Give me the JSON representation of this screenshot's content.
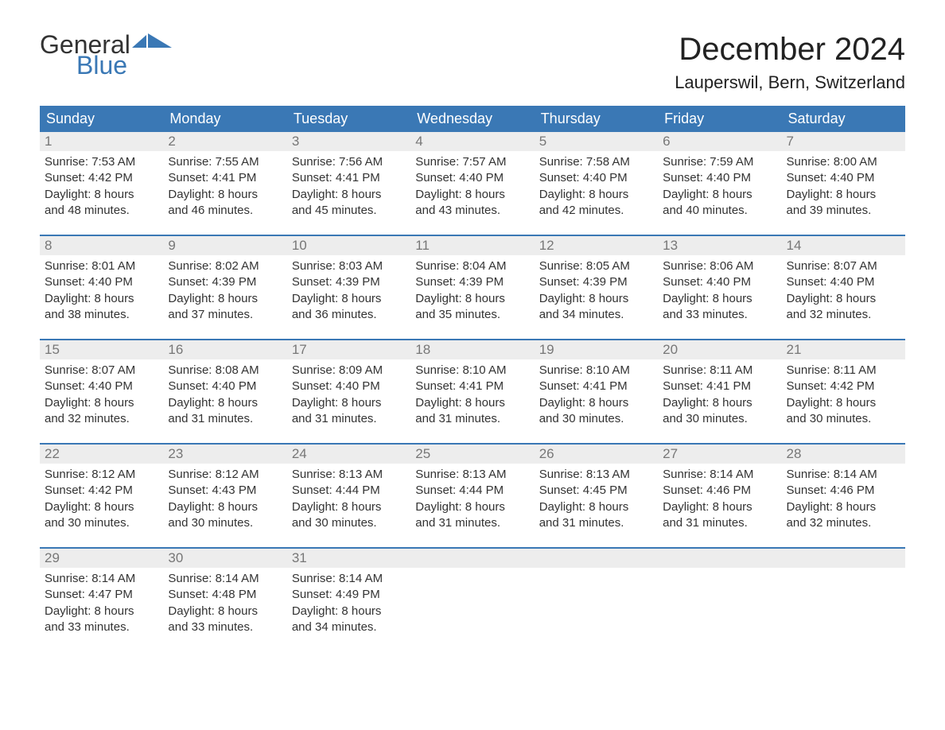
{
  "brand": {
    "general": "General",
    "blue": "Blue"
  },
  "title": "December 2024",
  "location": "Lauperswil, Bern, Switzerland",
  "colors": {
    "header_bg": "#3a78b5",
    "header_text": "#ffffff",
    "daynum_bg": "#ededed",
    "daynum_text": "#777777",
    "body_text": "#333333",
    "row_border": "#3a78b5",
    "logo_accent": "#3a78b5"
  },
  "day_headers": [
    "Sunday",
    "Monday",
    "Tuesday",
    "Wednesday",
    "Thursday",
    "Friday",
    "Saturday"
  ],
  "weeks": [
    [
      {
        "n": "1",
        "sr": "Sunrise: 7:53 AM",
        "ss": "Sunset: 4:42 PM",
        "d1": "Daylight: 8 hours",
        "d2": "and 48 minutes."
      },
      {
        "n": "2",
        "sr": "Sunrise: 7:55 AM",
        "ss": "Sunset: 4:41 PM",
        "d1": "Daylight: 8 hours",
        "d2": "and 46 minutes."
      },
      {
        "n": "3",
        "sr": "Sunrise: 7:56 AM",
        "ss": "Sunset: 4:41 PM",
        "d1": "Daylight: 8 hours",
        "d2": "and 45 minutes."
      },
      {
        "n": "4",
        "sr": "Sunrise: 7:57 AM",
        "ss": "Sunset: 4:40 PM",
        "d1": "Daylight: 8 hours",
        "d2": "and 43 minutes."
      },
      {
        "n": "5",
        "sr": "Sunrise: 7:58 AM",
        "ss": "Sunset: 4:40 PM",
        "d1": "Daylight: 8 hours",
        "d2": "and 42 minutes."
      },
      {
        "n": "6",
        "sr": "Sunrise: 7:59 AM",
        "ss": "Sunset: 4:40 PM",
        "d1": "Daylight: 8 hours",
        "d2": "and 40 minutes."
      },
      {
        "n": "7",
        "sr": "Sunrise: 8:00 AM",
        "ss": "Sunset: 4:40 PM",
        "d1": "Daylight: 8 hours",
        "d2": "and 39 minutes."
      }
    ],
    [
      {
        "n": "8",
        "sr": "Sunrise: 8:01 AM",
        "ss": "Sunset: 4:40 PM",
        "d1": "Daylight: 8 hours",
        "d2": "and 38 minutes."
      },
      {
        "n": "9",
        "sr": "Sunrise: 8:02 AM",
        "ss": "Sunset: 4:39 PM",
        "d1": "Daylight: 8 hours",
        "d2": "and 37 minutes."
      },
      {
        "n": "10",
        "sr": "Sunrise: 8:03 AM",
        "ss": "Sunset: 4:39 PM",
        "d1": "Daylight: 8 hours",
        "d2": "and 36 minutes."
      },
      {
        "n": "11",
        "sr": "Sunrise: 8:04 AM",
        "ss": "Sunset: 4:39 PM",
        "d1": "Daylight: 8 hours",
        "d2": "and 35 minutes."
      },
      {
        "n": "12",
        "sr": "Sunrise: 8:05 AM",
        "ss": "Sunset: 4:39 PM",
        "d1": "Daylight: 8 hours",
        "d2": "and 34 minutes."
      },
      {
        "n": "13",
        "sr": "Sunrise: 8:06 AM",
        "ss": "Sunset: 4:40 PM",
        "d1": "Daylight: 8 hours",
        "d2": "and 33 minutes."
      },
      {
        "n": "14",
        "sr": "Sunrise: 8:07 AM",
        "ss": "Sunset: 4:40 PM",
        "d1": "Daylight: 8 hours",
        "d2": "and 32 minutes."
      }
    ],
    [
      {
        "n": "15",
        "sr": "Sunrise: 8:07 AM",
        "ss": "Sunset: 4:40 PM",
        "d1": "Daylight: 8 hours",
        "d2": "and 32 minutes."
      },
      {
        "n": "16",
        "sr": "Sunrise: 8:08 AM",
        "ss": "Sunset: 4:40 PM",
        "d1": "Daylight: 8 hours",
        "d2": "and 31 minutes."
      },
      {
        "n": "17",
        "sr": "Sunrise: 8:09 AM",
        "ss": "Sunset: 4:40 PM",
        "d1": "Daylight: 8 hours",
        "d2": "and 31 minutes."
      },
      {
        "n": "18",
        "sr": "Sunrise: 8:10 AM",
        "ss": "Sunset: 4:41 PM",
        "d1": "Daylight: 8 hours",
        "d2": "and 31 minutes."
      },
      {
        "n": "19",
        "sr": "Sunrise: 8:10 AM",
        "ss": "Sunset: 4:41 PM",
        "d1": "Daylight: 8 hours",
        "d2": "and 30 minutes."
      },
      {
        "n": "20",
        "sr": "Sunrise: 8:11 AM",
        "ss": "Sunset: 4:41 PM",
        "d1": "Daylight: 8 hours",
        "d2": "and 30 minutes."
      },
      {
        "n": "21",
        "sr": "Sunrise: 8:11 AM",
        "ss": "Sunset: 4:42 PM",
        "d1": "Daylight: 8 hours",
        "d2": "and 30 minutes."
      }
    ],
    [
      {
        "n": "22",
        "sr": "Sunrise: 8:12 AM",
        "ss": "Sunset: 4:42 PM",
        "d1": "Daylight: 8 hours",
        "d2": "and 30 minutes."
      },
      {
        "n": "23",
        "sr": "Sunrise: 8:12 AM",
        "ss": "Sunset: 4:43 PM",
        "d1": "Daylight: 8 hours",
        "d2": "and 30 minutes."
      },
      {
        "n": "24",
        "sr": "Sunrise: 8:13 AM",
        "ss": "Sunset: 4:44 PM",
        "d1": "Daylight: 8 hours",
        "d2": "and 30 minutes."
      },
      {
        "n": "25",
        "sr": "Sunrise: 8:13 AM",
        "ss": "Sunset: 4:44 PM",
        "d1": "Daylight: 8 hours",
        "d2": "and 31 minutes."
      },
      {
        "n": "26",
        "sr": "Sunrise: 8:13 AM",
        "ss": "Sunset: 4:45 PM",
        "d1": "Daylight: 8 hours",
        "d2": "and 31 minutes."
      },
      {
        "n": "27",
        "sr": "Sunrise: 8:14 AM",
        "ss": "Sunset: 4:46 PM",
        "d1": "Daylight: 8 hours",
        "d2": "and 31 minutes."
      },
      {
        "n": "28",
        "sr": "Sunrise: 8:14 AM",
        "ss": "Sunset: 4:46 PM",
        "d1": "Daylight: 8 hours",
        "d2": "and 32 minutes."
      }
    ],
    [
      {
        "n": "29",
        "sr": "Sunrise: 8:14 AM",
        "ss": "Sunset: 4:47 PM",
        "d1": "Daylight: 8 hours",
        "d2": "and 33 minutes."
      },
      {
        "n": "30",
        "sr": "Sunrise: 8:14 AM",
        "ss": "Sunset: 4:48 PM",
        "d1": "Daylight: 8 hours",
        "d2": "and 33 minutes."
      },
      {
        "n": "31",
        "sr": "Sunrise: 8:14 AM",
        "ss": "Sunset: 4:49 PM",
        "d1": "Daylight: 8 hours",
        "d2": "and 34 minutes."
      },
      {
        "empty": true
      },
      {
        "empty": true
      },
      {
        "empty": true
      },
      {
        "empty": true
      }
    ]
  ],
  "typography": {
    "title_fontsize": 40,
    "location_fontsize": 22,
    "dayheader_fontsize": 18,
    "daynum_fontsize": 17,
    "body_fontsize": 15
  }
}
